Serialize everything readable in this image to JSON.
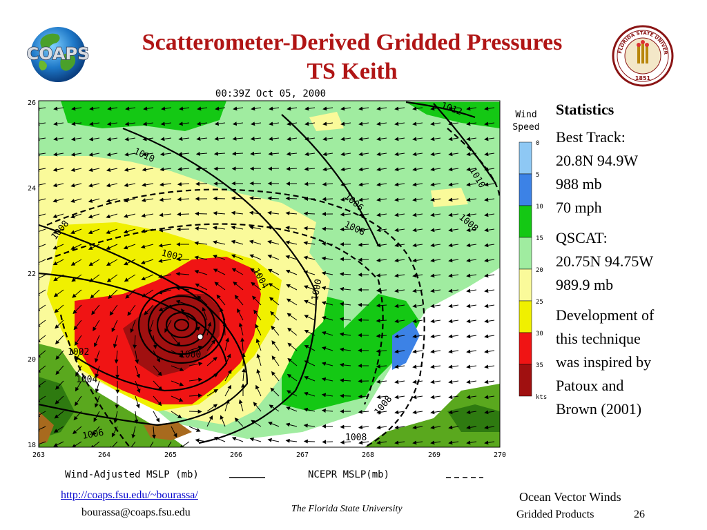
{
  "slide": {
    "title_line1": "Scatterometer-Derived Gridded Pressures",
    "title_line2": "TS Keith",
    "logo_left_text": "COAPS",
    "logo_right_text": "FLORIDA STATE UNIVERSITY",
    "logo_right_year": "1851"
  },
  "map": {
    "timestamp": "00:39Z Oct 05, 2000",
    "lat_labels": [
      "26",
      "24",
      "22",
      "20",
      "18"
    ],
    "lon_labels": [
      "263",
      "264",
      "265",
      "266",
      "267",
      "268",
      "269",
      "270"
    ],
    "legend_label_wind": "Wind-Adjusted MSLP (mb)",
    "legend_label_ncep": "NCEPR MSLP(mb)",
    "colorbar_title_1": "Wind",
    "colorbar_title_2": "Speed",
    "colorbar_ticks": [
      "0",
      "5",
      "10",
      "15",
      "20",
      "25",
      "30",
      "35",
      "kts"
    ],
    "colorbar_colors": [
      "#8ec8f4",
      "#3c82e6",
      "#14c814",
      "#a0eca0",
      "#fafa9a",
      "#f0f000",
      "#f01414",
      "#a01010"
    ],
    "contour_labels": [
      "1012",
      "1010",
      "1008",
      "1006",
      "1008",
      "1010",
      "1008",
      "1002",
      "1004",
      "1000",
      "1002",
      "1004",
      "1006",
      "1008",
      "1000",
      "1008"
    ],
    "colors": {
      "land": "#5aa81e",
      "land_dark": "#2e7a10",
      "ocean_calm": "#ffffff"
    }
  },
  "stats": {
    "heading": "Statistics",
    "best_track_label": "Best Track:",
    "best_track_pos": "20.8N 94.9W",
    "best_track_pressure": "988 mb",
    "best_track_wind": "70 mph",
    "qscat_label": "QSCAT:",
    "qscat_pos": "20.75N 94.75W",
    "qscat_pressure": "989.9 mb",
    "note_line1": "Development of",
    "note_line2": "this technique",
    "note_line3": "was inspired by",
    "note_line4": "Patoux and",
    "note_line5": "Brown (2001)"
  },
  "footer": {
    "url": "http://coaps.fsu.edu/~bourassa/",
    "email": "bourassa@coaps.fsu.edu",
    "university": "The Florida State University",
    "topic": "Ocean Vector Winds",
    "subtopic": "Gridded Products",
    "page": "26"
  }
}
